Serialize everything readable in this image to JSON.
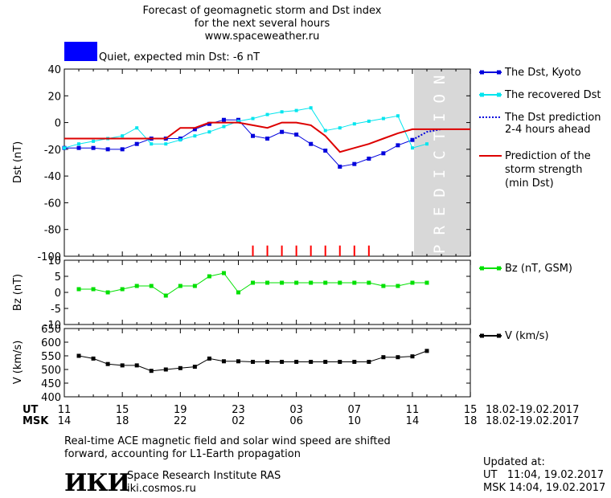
{
  "header": {
    "title_line1": "Forecast of geomagnetic storm and Dst index",
    "title_line2": "for the next several hours",
    "url": "www.spaceweather.ru",
    "status_text": "Quiet, expected min Dst: -6 nT",
    "status_color": "#0000ff"
  },
  "legend": {
    "dst_kyoto": "The Dst, Kyoto",
    "recovered": "The recovered Dst",
    "prediction_line1": "The Dst prediction",
    "prediction_line2": "2-4 hours ahead",
    "strength_line1": "Prediction of the",
    "strength_line2": "storm strength",
    "strength_line3": "(min Dst)",
    "bz": "Bz (nT, GSM)",
    "v": "V (km/s)"
  },
  "prediction_label": "PREDICTION",
  "time_axis": {
    "ut_label": "UT",
    "msk_label": "MSK",
    "ut_ticks": [
      "11",
      "15",
      "19",
      "23",
      "03",
      "07",
      "11",
      "15"
    ],
    "msk_ticks": [
      "14",
      "18",
      "22",
      "02",
      "06",
      "10",
      "14",
      "18"
    ],
    "date_range_ut": "18.02-19.02.2017",
    "date_range_msk": "18.02-19.02.2017"
  },
  "footer": {
    "note_line1": "Real-time ACE magnetic field and solar wind speed are shifted",
    "note_line2": "forward, accounting for L1-Earth propagation",
    "logo_text": "ИКИ",
    "institute": "Space Research Institute RAS",
    "website": "iki.cosmos.ru",
    "updated_label": "Updated at:",
    "updated_ut": "UT   11:04, 19.02.2017",
    "updated_msk": "MSK 14:04, 19.02.2017"
  },
  "colors": {
    "dst_kyoto": "#0000dd",
    "recovered": "#00e5ee",
    "prediction": "#0000dd",
    "strength": "#dd0000",
    "bz": "#00e000",
    "v": "#000000",
    "prediction_zone": "#d8d8d8",
    "storm_marks": "#ff0000"
  },
  "chart_data": [
    {
      "type": "line",
      "ylabel": "Dst (nT)",
      "ylim": [
        -100,
        40
      ],
      "yticks": [
        40,
        20,
        0,
        -20,
        -40,
        -60,
        -80,
        -100
      ],
      "xlim_hours_ut": [
        11,
        35
      ],
      "series": [
        {
          "name": "The Dst, Kyoto",
          "x": [
            11,
            12,
            13,
            14,
            15,
            16,
            17,
            18,
            19,
            20,
            21,
            22,
            23,
            24,
            25,
            26,
            27,
            28,
            29,
            30,
            31,
            32,
            33,
            34,
            35
          ],
          "y": [
            -19,
            -19,
            -19,
            -20,
            -20,
            -16,
            -12,
            -12,
            -12,
            -5,
            -1,
            2,
            2,
            -10,
            -12,
            -7,
            -9,
            -16,
            -21,
            -33,
            -31,
            -27,
            -23,
            -17,
            -13
          ]
        },
        {
          "name": "The recovered Dst",
          "x": [
            11,
            12,
            13,
            14,
            15,
            16,
            17,
            18,
            19,
            20,
            21,
            22,
            23,
            24,
            25,
            26,
            27,
            28,
            29,
            30,
            31,
            32,
            33,
            34,
            35,
            36
          ],
          "y": [
            -19,
            -16,
            -14,
            -12,
            -10,
            -4,
            -16,
            -16,
            -13,
            -10,
            -7,
            -3,
            1,
            3,
            6,
            8,
            9,
            11,
            -6,
            -4,
            -1,
            1,
            3,
            5,
            -19,
            -16
          ]
        },
        {
          "name": "The Dst prediction 2-4 hours ahead",
          "x": [
            35,
            36,
            37
          ],
          "y": [
            -13,
            -7,
            -5
          ]
        },
        {
          "name": "Prediction of the storm strength (min Dst)",
          "x": [
            11,
            18,
            19,
            20,
            21,
            22,
            23,
            24,
            25,
            26,
            27,
            28,
            29,
            30,
            31,
            32,
            33,
            34,
            35,
            36,
            39
          ],
          "y": [
            -12,
            -12,
            -4,
            -4,
            0,
            0,
            0,
            -2,
            -4,
            0,
            0,
            -2,
            -10,
            -22,
            -19,
            -16,
            -12,
            -8,
            -5,
            -5,
            -5
          ]
        }
      ],
      "storm_marks_x": [
        24,
        25,
        26,
        27,
        28,
        29,
        30,
        31,
        32
      ]
    },
    {
      "type": "line",
      "ylabel": "Bz (nT)",
      "ylim": [
        -10,
        10
      ],
      "yticks": [
        10,
        5,
        0,
        -5,
        -10
      ],
      "series": [
        {
          "name": "Bz (nT, GSM)",
          "x": [
            12,
            13,
            14,
            15,
            16,
            17,
            18,
            19,
            20,
            21,
            22,
            23,
            24,
            25,
            26,
            27,
            28,
            29,
            30,
            31,
            32,
            33,
            34,
            35,
            36
          ],
          "y": [
            1,
            1,
            0,
            1,
            2,
            2,
            -1,
            2,
            2,
            5,
            6,
            0,
            3,
            3,
            3,
            3,
            3,
            3,
            3,
            3,
            3,
            2,
            2,
            3,
            3
          ]
        }
      ]
    },
    {
      "type": "line",
      "ylabel": "V (km/s)",
      "ylim": [
        400,
        650
      ],
      "yticks": [
        650,
        600,
        550,
        500,
        450,
        400
      ],
      "series": [
        {
          "name": "V (km/s)",
          "x": [
            12,
            13,
            14,
            15,
            16,
            17,
            18,
            19,
            20,
            21,
            22,
            23,
            24,
            25,
            26,
            27,
            28,
            29,
            30,
            31,
            32,
            33,
            34,
            35,
            36
          ],
          "y": [
            550,
            540,
            520,
            515,
            515,
            495,
            500,
            505,
            510,
            540,
            530,
            530,
            528,
            528,
            528,
            528,
            528,
            528,
            528,
            528,
            528,
            545,
            545,
            548,
            568
          ]
        }
      ]
    }
  ]
}
